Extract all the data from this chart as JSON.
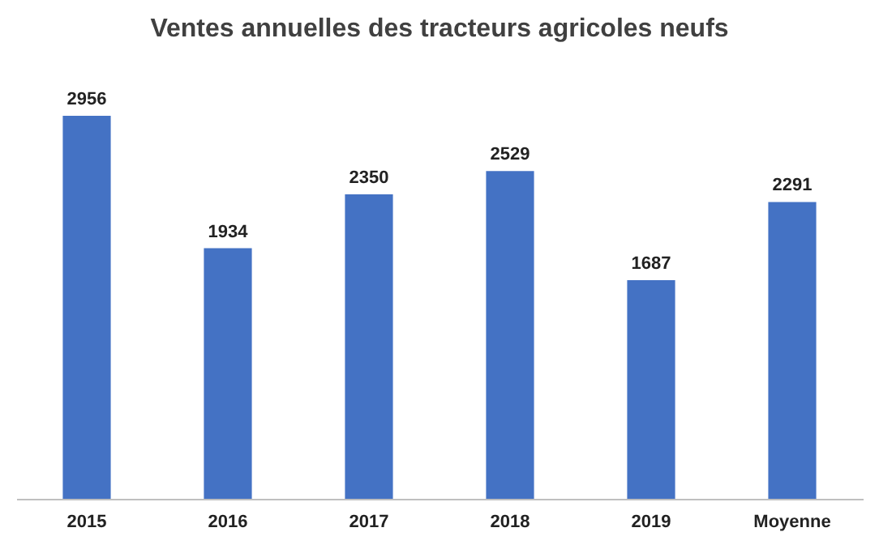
{
  "chart_data": {
    "type": "bar",
    "title": "Ventes annuelles des tracteurs agricoles neufs",
    "categories": [
      "2015",
      "2016",
      "2017",
      "2018",
      "2019",
      "Moyenne"
    ],
    "values": [
      2956,
      1934,
      2350,
      2529,
      1687,
      2291
    ],
    "color": "#4472c4",
    "data_labels": true
  }
}
